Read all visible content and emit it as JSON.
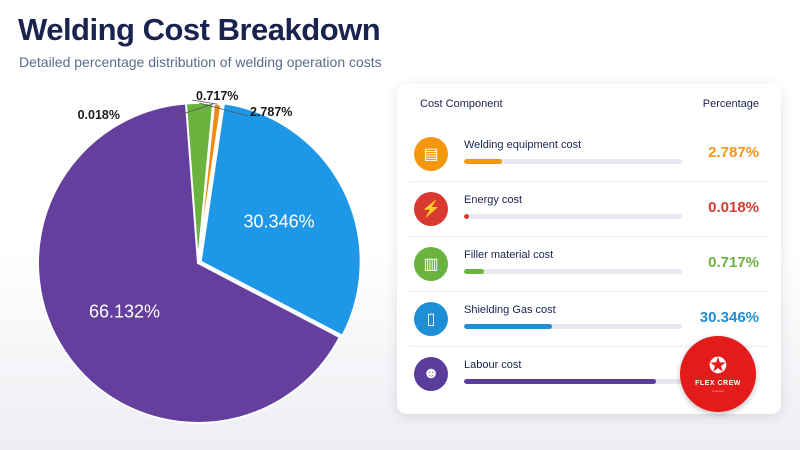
{
  "header": {
    "title": "Welding Cost Breakdown",
    "subtitle": "Detailed percentage distribution of welding operation costs"
  },
  "chart_data": {
    "type": "pie",
    "categories": [
      "Welding equipment cost",
      "Energy cost",
      "Filler material cost",
      "Shielding Gas cost",
      "Labour cost"
    ],
    "values": [
      2.787,
      0.018,
      0.717,
      30.346,
      66.132
    ],
    "slice_labels": [
      "2.787%",
      "0.018%",
      "0.717%",
      "30.346%",
      "66.132%"
    ],
    "colors": [
      "#6bb33f",
      "#d8433a",
      "#f08a12",
      "#1e97e6",
      "#643f9e"
    ]
  },
  "table": {
    "col_component": "Cost Component",
    "col_percentage": "Percentage",
    "rows": [
      {
        "label": "Welding equipment cost",
        "pct": "2.787%",
        "value": 2.787,
        "color": "#f5960f",
        "icon": "equipment-icon",
        "glyph": "▤"
      },
      {
        "label": "Energy cost",
        "pct": "0.018%",
        "value": 0.018,
        "color": "#d83a2f",
        "icon": "lightning-icon",
        "glyph": "⚡"
      },
      {
        "label": "Filler material cost",
        "pct": "0.717%",
        "value": 0.717,
        "color": "#6bb33f",
        "icon": "filler-spool-icon",
        "glyph": "▥"
      },
      {
        "label": "Shielding Gas cost",
        "pct": "30.346%",
        "value": 30.346,
        "color": "#1e8fd6",
        "icon": "gas-cylinder-icon",
        "glyph": "▯"
      },
      {
        "label": "Labour cost",
        "pct": "",
        "value": 66.132,
        "color": "#5a3d9a",
        "icon": "worker-icon",
        "glyph": "☻"
      }
    ]
  },
  "badge": {
    "text": "FLEX CREW",
    "icon": "strongman-icon"
  }
}
